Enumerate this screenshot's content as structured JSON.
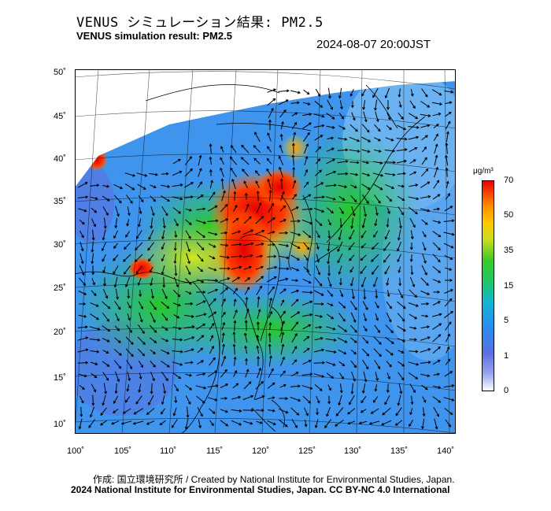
{
  "header": {
    "title_jp": "VENUS シミュレーション結果: PM2.5",
    "title_en": "VENUS simulation result: PM2.5",
    "timestamp": "2024-08-07 20:00JST"
  },
  "map": {
    "lat_labels": [
      "50˚",
      "45˚",
      "40˚",
      "35˚",
      "30˚",
      "25˚",
      "20˚",
      "15˚",
      "10˚"
    ],
    "lon_labels": [
      "100˚",
      "105˚",
      "110˚",
      "115˚",
      "120˚",
      "125˚",
      "130˚",
      "135˚",
      "140˚"
    ],
    "extent": {
      "lon_min": 100,
      "lon_max": 141,
      "lat_min": 9,
      "lat_max": 51
    }
  },
  "colorbar": {
    "unit": "μg/m³",
    "labels": [
      "70",
      "50",
      "35",
      "15",
      "5",
      "1",
      "0"
    ],
    "colors": [
      "#ffffff",
      "#5a6fe0",
      "#1e90ff",
      "#00c8c8",
      "#22c022",
      "#c8dc1e",
      "#ffb400",
      "#ff6400",
      "#e60000"
    ]
  },
  "footer": {
    "credit": "作成: 国立環境研究所 / Created by National Institute for Environmental Studies, Japan.",
    "license": "2024 National Institute for Environmental Studies, Japan. CC BY-NC 4.0 International"
  }
}
